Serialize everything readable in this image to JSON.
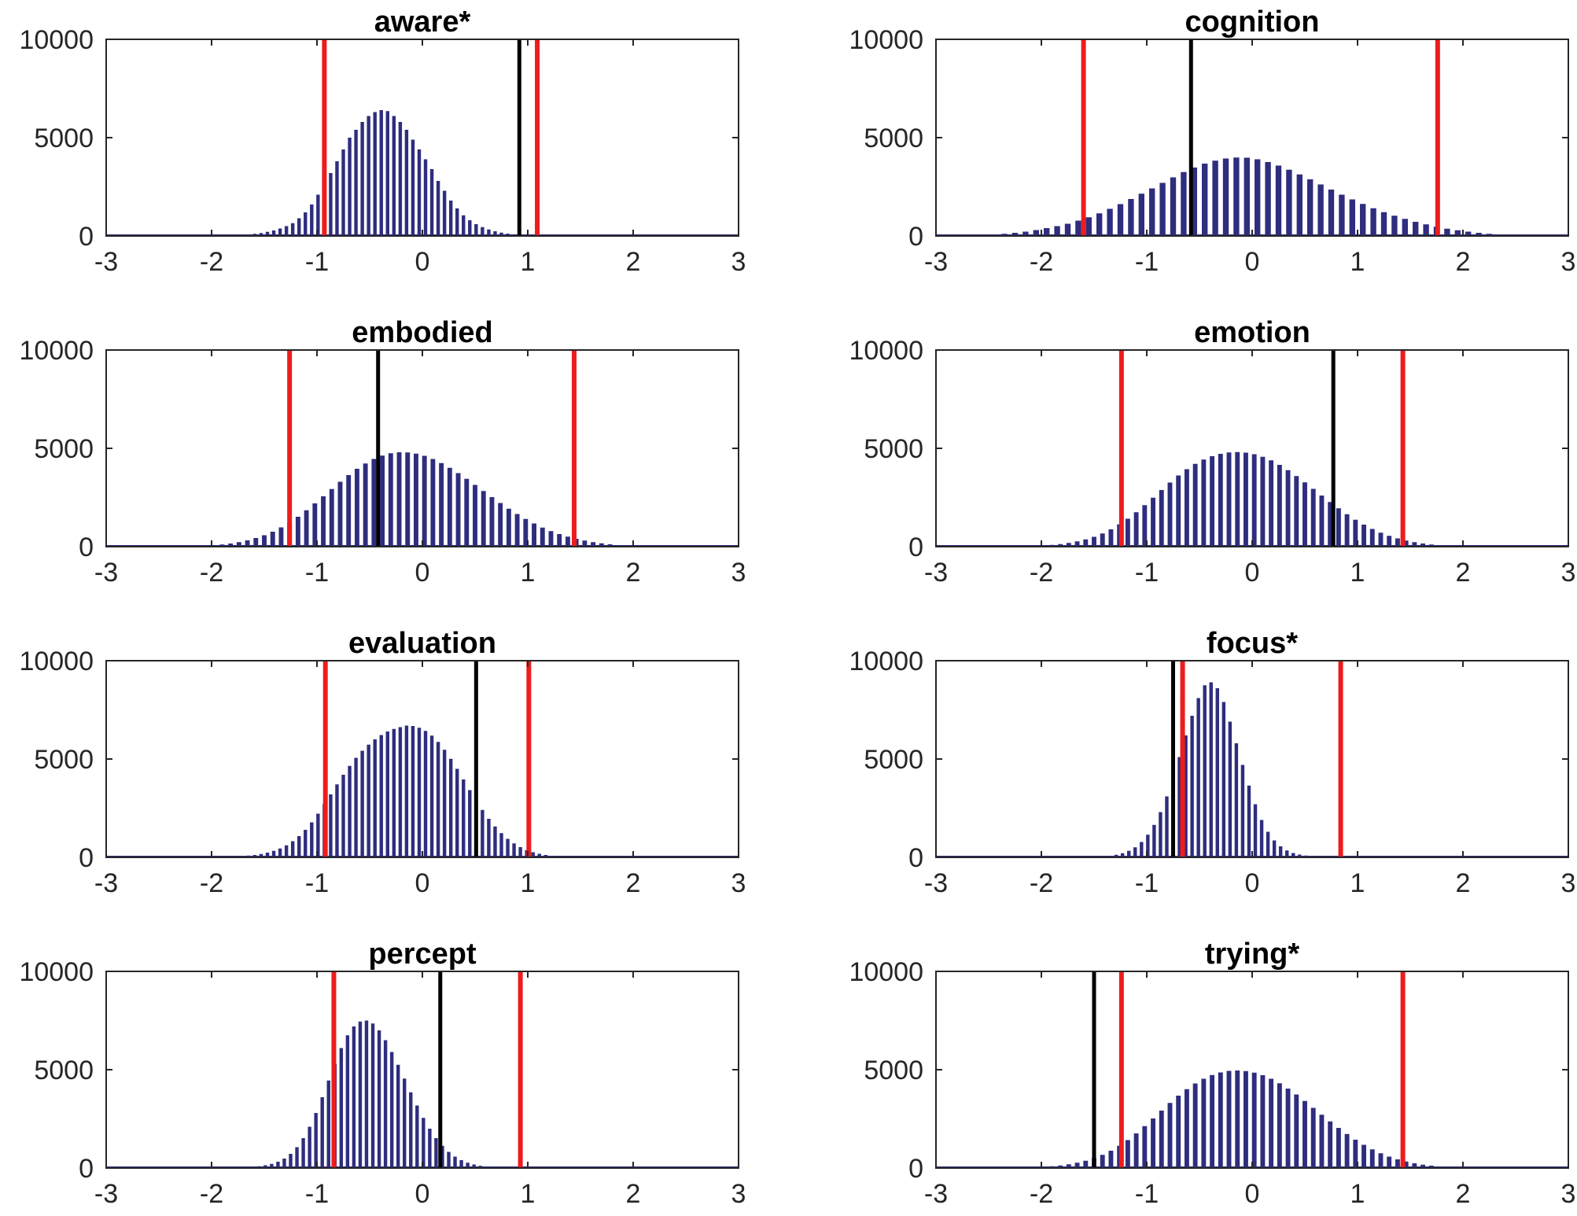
{
  "figure": {
    "description_colors": {
      "bar": "#2e2d7e",
      "observed_line": "#000000",
      "threshold_line": "#ee1c1c",
      "axis": "#262626"
    }
  },
  "chart_data": [
    {
      "type": "bar",
      "title": "aware*",
      "xlim": [
        -3,
        3
      ],
      "ylim": [
        0,
        10000
      ],
      "xticks": [
        "-3",
        "-2",
        "-1",
        "0",
        "1",
        "2",
        "3"
      ],
      "yticks": [
        "0",
        "5000",
        "10000"
      ],
      "bins": {
        "start": -1.8,
        "width": 0.06
      },
      "values": [
        40,
        60,
        80,
        110,
        150,
        210,
        280,
        380,
        500,
        650,
        900,
        1200,
        1600,
        2100,
        2700,
        3200,
        3800,
        4400,
        5000,
        5400,
        5800,
        6100,
        6300,
        6400,
        6350,
        6100,
        5800,
        5400,
        4900,
        4400,
        3900,
        3400,
        2800,
        2300,
        1800,
        1400,
        1050,
        800,
        600,
        450,
        330,
        240,
        170,
        120,
        85,
        60,
        40,
        25
      ],
      "threshold_lines": [
        -0.93,
        1.09
      ],
      "observed_line": 0.92
    },
    {
      "type": "bar",
      "title": "cognition",
      "xlim": [
        -3,
        3
      ],
      "ylim": [
        0,
        10000
      ],
      "xticks": [
        "-3",
        "-2",
        "-1",
        "0",
        "1",
        "2",
        "3"
      ],
      "yticks": [
        "0",
        "5000",
        "10000"
      ],
      "bins": {
        "start": -2.6,
        "width": 0.1
      },
      "values": [
        50,
        80,
        110,
        160,
        220,
        300,
        400,
        500,
        620,
        780,
        950,
        1150,
        1380,
        1620,
        1880,
        2150,
        2420,
        2700,
        2980,
        3250,
        3480,
        3680,
        3830,
        3940,
        3990,
        3980,
        3900,
        3760,
        3580,
        3370,
        3130,
        2880,
        2620,
        2360,
        2100,
        1860,
        1630,
        1410,
        1210,
        1030,
        870,
        720,
        590,
        470,
        370,
        290,
        220,
        160,
        110,
        70,
        40,
        20
      ],
      "threshold_lines": [
        -1.6,
        1.76
      ],
      "observed_line": -0.58
    },
    {
      "type": "bar",
      "title": "embodied",
      "xlim": [
        -3,
        3
      ],
      "ylim": [
        0,
        10000
      ],
      "xticks": [
        "-3",
        "-2",
        "-1",
        "0",
        "1",
        "2",
        "3"
      ],
      "yticks": [
        "0",
        "5000",
        "10000"
      ],
      "bins": {
        "start": -2.1,
        "width": 0.08
      },
      "values": [
        50,
        80,
        110,
        160,
        230,
        320,
        440,
        580,
        760,
        980,
        1230,
        1520,
        1850,
        2200,
        2560,
        2930,
        3300,
        3640,
        3960,
        4230,
        4460,
        4630,
        4750,
        4800,
        4790,
        4730,
        4620,
        4460,
        4250,
        4010,
        3740,
        3450,
        3140,
        2830,
        2520,
        2220,
        1930,
        1660,
        1410,
        1180,
        970,
        790,
        640,
        510,
        400,
        310,
        230,
        170,
        120,
        80,
        50,
        30
      ],
      "threshold_lines": [
        -1.26,
        1.44
      ],
      "observed_line": -0.42
    },
    {
      "type": "bar",
      "title": "emotion",
      "xlim": [
        -3,
        3
      ],
      "ylim": [
        0,
        10000
      ],
      "xticks": [
        "-3",
        "-2",
        "-1",
        "0",
        "1",
        "2",
        "3"
      ],
      "yticks": [
        "0",
        "5000",
        "10000"
      ],
      "bins": {
        "start": -2.1,
        "width": 0.08
      },
      "values": [
        40,
        60,
        90,
        130,
        190,
        270,
        370,
        500,
        670,
        880,
        1130,
        1420,
        1750,
        2110,
        2490,
        2880,
        3260,
        3620,
        3940,
        4210,
        4430,
        4600,
        4720,
        4790,
        4810,
        4780,
        4700,
        4570,
        4390,
        4160,
        3890,
        3590,
        3270,
        2940,
        2600,
        2270,
        1950,
        1650,
        1370,
        1120,
        900,
        710,
        550,
        420,
        310,
        230,
        160,
        110,
        75,
        50,
        30,
        20
      ],
      "threshold_lines": [
        -1.24,
        1.43
      ],
      "observed_line": 0.77
    },
    {
      "type": "bar",
      "title": "evaluation",
      "xlim": [
        -3,
        3
      ],
      "ylim": [
        0,
        10000
      ],
      "xticks": [
        "-3",
        "-2",
        "-1",
        "0",
        "1",
        "2",
        "3"
      ],
      "yticks": [
        "0",
        "5000",
        "10000"
      ],
      "bins": {
        "start": -1.8,
        "width": 0.06
      },
      "values": [
        40,
        60,
        90,
        120,
        170,
        240,
        330,
        450,
        610,
        820,
        1080,
        1400,
        1780,
        2220,
        2700,
        3200,
        3710,
        4200,
        4650,
        5060,
        5420,
        5730,
        6000,
        6220,
        6400,
        6530,
        6620,
        6700,
        6680,
        6590,
        6430,
        6190,
        5870,
        5470,
        5010,
        4500,
        3960,
        3420,
        2900,
        2410,
        1960,
        1570,
        1230,
        940,
        710,
        520,
        370,
        260,
        180,
        120,
        80,
        50
      ],
      "threshold_lines": [
        -0.92,
        1.01
      ],
      "observed_line": 0.51
    },
    {
      "type": "bar",
      "title": "focus*",
      "xlim": [
        -3,
        3
      ],
      "ylim": [
        0,
        10000
      ],
      "xticks": [
        "-3",
        "-2",
        "-1",
        "0",
        "1",
        "2",
        "3"
      ],
      "yticks": [
        "0",
        "5000",
        "10000"
      ],
      "bins": {
        "start": -1.5,
        "width": 0.06
      },
      "values": [
        30,
        50,
        80,
        130,
        210,
        330,
        510,
        780,
        1150,
        1650,
        2300,
        3100,
        4050,
        5100,
        6200,
        7200,
        8100,
        8750,
        8900,
        8600,
        7900,
        6900,
        5800,
        4700,
        3650,
        2700,
        1900,
        1300,
        860,
        560,
        350,
        220,
        140,
        90,
        55,
        35
      ],
      "threshold_lines": [
        -0.66,
        0.84
      ],
      "threshold_dashed": -0.67,
      "observed_line": -0.75
    },
    {
      "type": "bar",
      "title": "percept",
      "xlim": [
        -3,
        3
      ],
      "ylim": [
        0,
        10000
      ],
      "xticks": [
        "-3",
        "-2",
        "-1",
        "0",
        "1",
        "2",
        "3"
      ],
      "yticks": [
        "0",
        "5000",
        "10000"
      ],
      "bins": {
        "start": -1.7,
        "width": 0.06
      },
      "values": [
        40,
        60,
        90,
        140,
        210,
        320,
        480,
        720,
        1060,
        1520,
        2100,
        2800,
        3600,
        4450,
        5300,
        6100,
        6750,
        7200,
        7450,
        7500,
        7350,
        7000,
        6500,
        5900,
        5250,
        4550,
        3850,
        3180,
        2550,
        2000,
        1520,
        1130,
        820,
        580,
        400,
        270,
        180,
        115,
        75,
        45,
        30,
        20
      ],
      "threshold_lines": [
        -0.84,
        0.93
      ],
      "observed_line": 0.17
    },
    {
      "type": "bar",
      "title": "trying*",
      "xlim": [
        -3,
        3
      ],
      "ylim": [
        0,
        10000
      ],
      "xticks": [
        "-3",
        "-2",
        "-1",
        "0",
        "1",
        "2",
        "3"
      ],
      "yticks": [
        "0",
        "5000",
        "10000"
      ],
      "bins": {
        "start": -2.1,
        "width": 0.08
      },
      "values": [
        40,
        60,
        90,
        130,
        190,
        270,
        370,
        500,
        670,
        880,
        1130,
        1420,
        1760,
        2130,
        2520,
        2920,
        3310,
        3680,
        4010,
        4300,
        4540,
        4730,
        4860,
        4940,
        4960,
        4930,
        4850,
        4720,
        4540,
        4310,
        4040,
        3740,
        3410,
        3060,
        2710,
        2370,
        2040,
        1730,
        1440,
        1180,
        950,
        750,
        580,
        440,
        330,
        240,
        170,
        120,
        80,
        55,
        35,
        20
      ],
      "threshold_lines": [
        -1.24,
        1.43
      ],
      "observed_line": -1.5
    }
  ]
}
